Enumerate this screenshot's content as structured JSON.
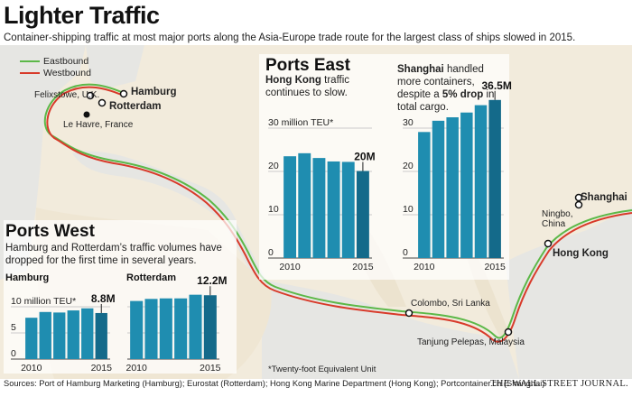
{
  "title": "Lighter Traffic",
  "subtitle": "Container-shipping traffic at most major ports along the Asia-Europe trade route for the largest class of ships slowed in 2015.",
  "legend": [
    {
      "label": "Eastbound",
      "color": "#5cb848"
    },
    {
      "label": "Westbound",
      "color": "#d83a2a"
    }
  ],
  "map_labels": {
    "felixstowe": "Felixstowe, U.K.",
    "hamburg": "Hamburg",
    "rotterdam": "Rotterdam",
    "lehavre": "Le Havre, France",
    "colombo": "Colombo, Sri Lanka",
    "tanjung": "Tanjung Pelepas, Malaysia",
    "ningbo": "Ningbo, China",
    "shanghai": "Shanghai",
    "hongkong": "Hong Kong"
  },
  "ports_east": {
    "title": "Ports East",
    "hk_note_bold": "Hong Kong",
    "hk_note_rest": " traffic continues to slow.",
    "sh_note_bold1": "Shanghai",
    "sh_note_rest1": " handled more containers, despite a ",
    "sh_note_bold2": "5% drop",
    "sh_note_rest2": " in total cargo."
  },
  "ports_west": {
    "title": "Ports West",
    "note": "Hamburg and Rotterdam’s traffic volumes have dropped for the first time in several years.",
    "hamburg_label": "Hamburg",
    "rotterdam_label": "Rotterdam"
  },
  "footnote": "*Twenty-foot Equivalent Unit",
  "source": "Sources: Port of Hamburg Marketing (Hamburg); Eurostat (Rotterdam); Hong Kong Marine Department (Hong Kong); Portcontainer.cn (Shanghai)",
  "brand": "THE WALL STREET JOURNAL.",
  "chart_data": [
    {
      "type": "bar",
      "title": "Hong Kong",
      "categories": [
        "2010",
        "2011",
        "2012",
        "2013",
        "2014",
        "2015"
      ],
      "values": [
        23.5,
        24.2,
        23.1,
        22.3,
        22.2,
        20.1
      ],
      "ylim": [
        0,
        30
      ],
      "yticks": [
        "30 million TEU*",
        "20",
        "10",
        "0"
      ],
      "xticks": [
        "2010",
        "2015"
      ],
      "value_label": "20M",
      "bar_color": "#1f8db0",
      "highlight_color": "#146a8a"
    },
    {
      "type": "bar",
      "title": "Shanghai",
      "categories": [
        "2010",
        "2011",
        "2012",
        "2013",
        "2014",
        "2015"
      ],
      "values": [
        29.1,
        31.7,
        32.5,
        33.6,
        35.3,
        36.5
      ],
      "ylim": [
        0,
        36.5
      ],
      "yticks": [
        "30",
        "20",
        "10",
        "0"
      ],
      "xticks": [
        "2010",
        "2015"
      ],
      "value_label": "36.5M",
      "bar_color": "#1f8db0",
      "highlight_color": "#146a8a"
    },
    {
      "type": "bar",
      "title": "Hamburg",
      "categories": [
        "2010",
        "2011",
        "2012",
        "2013",
        "2014",
        "2015"
      ],
      "values": [
        7.9,
        9.0,
        8.9,
        9.3,
        9.7,
        8.8
      ],
      "ylim": [
        0,
        10
      ],
      "yticks": [
        "10 million TEU*",
        "5",
        "0"
      ],
      "xticks": [
        "2010",
        "2015"
      ],
      "value_label": "8.8M",
      "bar_color": "#1f8db0",
      "highlight_color": "#146a8a"
    },
    {
      "type": "bar",
      "title": "Rotterdam",
      "categories": [
        "2010",
        "2011",
        "2012",
        "2013",
        "2014",
        "2015"
      ],
      "values": [
        11.1,
        11.5,
        11.6,
        11.6,
        12.3,
        12.2
      ],
      "ylim": [
        0,
        10
      ],
      "yticks": [],
      "xticks": [
        "2010",
        "2015"
      ],
      "value_label": "12.2M",
      "bar_color": "#1f8db0",
      "highlight_color": "#146a8a"
    }
  ]
}
